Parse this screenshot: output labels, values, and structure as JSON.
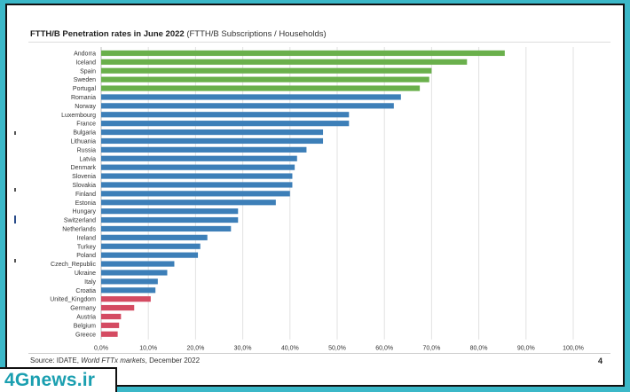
{
  "title_bold": "FTTH/B Penetration rates in June 2022",
  "title_rest": " (FTTH/B Subscriptions / Households)",
  "source_prefix": "Source: IDATE, ",
  "source_italic": "World FTTx markets",
  "source_suffix": ", December 2022",
  "page_number": "4",
  "watermark": "4Gnews.ir",
  "colors": {
    "green": "#6ab04c",
    "blue": "#3d7fb8",
    "red": "#d44b62",
    "frame": "#3bb8c8",
    "watermark": "#1a9fb0"
  },
  "chart_data": {
    "type": "bar",
    "orientation": "horizontal",
    "title": "FTTH/B Penetration rates in June 2022 (FTTH/B Subscriptions / Households)",
    "categories": [
      "Andorra",
      "Iceland",
      "Spain",
      "Sweden",
      "Portugal",
      "Romania",
      "Norway",
      "Luxembourg",
      "France",
      "Bulgaria",
      "Lithuania",
      "Russia",
      "Latvia",
      "Denmark",
      "Slovenia",
      "Slovakia",
      "Finland",
      "Estonia",
      "Hungary",
      "Switzerland",
      "Netherlands",
      "Ireland",
      "Turkey",
      "Poland",
      "Czech_Republic",
      "Ukraine",
      "Italy",
      "Croatia",
      "United_Kingdom",
      "Germany",
      "Austria",
      "Belgium",
      "Greece"
    ],
    "values": [
      85.5,
      77.5,
      70.0,
      69.5,
      67.5,
      63.5,
      62.0,
      52.5,
      52.5,
      47.0,
      47.0,
      43.5,
      41.5,
      41.0,
      40.5,
      40.5,
      40.0,
      37.0,
      29.0,
      29.0,
      27.5,
      22.5,
      21.0,
      20.5,
      15.5,
      14.0,
      12.0,
      11.5,
      10.5,
      7.0,
      4.2,
      3.8,
      3.5
    ],
    "bar_colors": [
      "green",
      "green",
      "green",
      "green",
      "green",
      "blue",
      "blue",
      "blue",
      "blue",
      "blue",
      "blue",
      "blue",
      "blue",
      "blue",
      "blue",
      "blue",
      "blue",
      "blue",
      "blue",
      "blue",
      "blue",
      "blue",
      "blue",
      "blue",
      "blue",
      "blue",
      "blue",
      "blue",
      "red",
      "red",
      "red",
      "red",
      "red"
    ],
    "x_ticks": [
      "0,0%",
      "10,0%",
      "20,0%",
      "30,0%",
      "40,0%",
      "50,0%",
      "60,0%",
      "70,0%",
      "80,0%",
      "90,0%",
      "100,0%"
    ],
    "xlim": [
      0,
      100
    ],
    "grid": "vertical",
    "legend": "none"
  }
}
